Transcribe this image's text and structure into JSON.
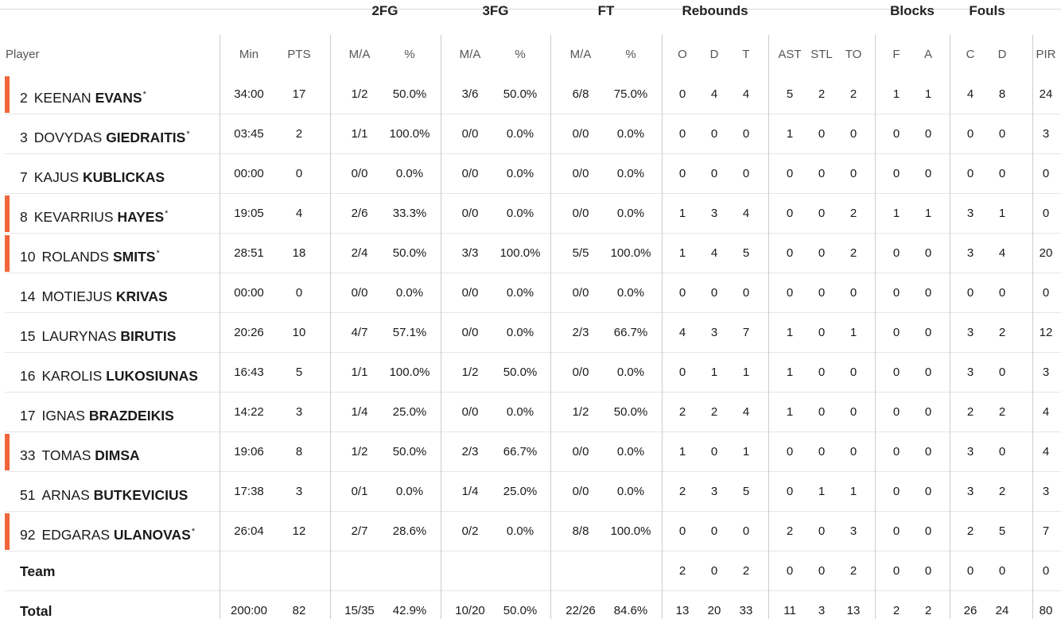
{
  "header": {
    "player_label": "Player",
    "groups": [
      {
        "key": "2fg",
        "label": "2FG"
      },
      {
        "key": "3fg",
        "label": "3FG"
      },
      {
        "key": "ft",
        "label": "FT"
      },
      {
        "key": "reb",
        "label": "Rebounds"
      },
      {
        "key": "blk",
        "label": "Blocks"
      },
      {
        "key": "fouls",
        "label": "Fouls"
      }
    ],
    "columns": [
      "Min",
      "PTS",
      "M/A",
      "%",
      "M/A",
      "%",
      "M/A",
      "%",
      "O",
      "D",
      "T",
      "AST",
      "STL",
      "TO",
      "F",
      "A",
      "C",
      "D",
      "PIR"
    ]
  },
  "players": [
    {
      "number": "2",
      "first": "KEENAN",
      "last": "EVANS",
      "star": "*",
      "starter": true,
      "stats": [
        "34:00",
        "17",
        "1/2",
        "50.0%",
        "3/6",
        "50.0%",
        "6/8",
        "75.0%",
        "0",
        "4",
        "4",
        "5",
        "2",
        "2",
        "1",
        "1",
        "4",
        "8",
        "24"
      ]
    },
    {
      "number": "3",
      "first": "DOVYDAS",
      "last": "GIEDRAITIS",
      "star": "*",
      "starter": false,
      "stats": [
        "03:45",
        "2",
        "1/1",
        "100.0%",
        "0/0",
        "0.0%",
        "0/0",
        "0.0%",
        "0",
        "0",
        "0",
        "1",
        "0",
        "0",
        "0",
        "0",
        "0",
        "0",
        "3"
      ]
    },
    {
      "number": "7",
      "first": "KAJUS",
      "last": "KUBLICKAS",
      "star": "",
      "starter": false,
      "stats": [
        "00:00",
        "0",
        "0/0",
        "0.0%",
        "0/0",
        "0.0%",
        "0/0",
        "0.0%",
        "0",
        "0",
        "0",
        "0",
        "0",
        "0",
        "0",
        "0",
        "0",
        "0",
        "0"
      ]
    },
    {
      "number": "8",
      "first": "KEVARRIUS",
      "last": "HAYES",
      "star": "*",
      "starter": true,
      "stats": [
        "19:05",
        "4",
        "2/6",
        "33.3%",
        "0/0",
        "0.0%",
        "0/0",
        "0.0%",
        "1",
        "3",
        "4",
        "0",
        "0",
        "2",
        "1",
        "1",
        "3",
        "1",
        "0"
      ]
    },
    {
      "number": "10",
      "first": "ROLANDS",
      "last": "SMITS",
      "star": "*",
      "starter": true,
      "stats": [
        "28:51",
        "18",
        "2/4",
        "50.0%",
        "3/3",
        "100.0%",
        "5/5",
        "100.0%",
        "1",
        "4",
        "5",
        "0",
        "0",
        "2",
        "0",
        "0",
        "3",
        "4",
        "20"
      ]
    },
    {
      "number": "14",
      "first": "MOTIEJUS",
      "last": "KRIVAS",
      "star": "",
      "starter": false,
      "stats": [
        "00:00",
        "0",
        "0/0",
        "0.0%",
        "0/0",
        "0.0%",
        "0/0",
        "0.0%",
        "0",
        "0",
        "0",
        "0",
        "0",
        "0",
        "0",
        "0",
        "0",
        "0",
        "0"
      ]
    },
    {
      "number": "15",
      "first": "LAURYNAS",
      "last": "BIRUTIS",
      "star": "",
      "starter": false,
      "stats": [
        "20:26",
        "10",
        "4/7",
        "57.1%",
        "0/0",
        "0.0%",
        "2/3",
        "66.7%",
        "4",
        "3",
        "7",
        "1",
        "0",
        "1",
        "0",
        "0",
        "3",
        "2",
        "12"
      ]
    },
    {
      "number": "16",
      "first": "KAROLIS",
      "last": "LUKOSIUNAS",
      "star": "",
      "starter": false,
      "stats": [
        "16:43",
        "5",
        "1/1",
        "100.0%",
        "1/2",
        "50.0%",
        "0/0",
        "0.0%",
        "0",
        "1",
        "1",
        "1",
        "0",
        "0",
        "0",
        "0",
        "3",
        "0",
        "3"
      ]
    },
    {
      "number": "17",
      "first": "IGNAS",
      "last": "BRAZDEIKIS",
      "star": "",
      "starter": false,
      "stats": [
        "14:22",
        "3",
        "1/4",
        "25.0%",
        "0/0",
        "0.0%",
        "1/2",
        "50.0%",
        "2",
        "2",
        "4",
        "1",
        "0",
        "0",
        "0",
        "0",
        "2",
        "2",
        "4"
      ]
    },
    {
      "number": "33",
      "first": "TOMAS",
      "last": "DIMSA",
      "star": "",
      "starter": true,
      "stats": [
        "19:06",
        "8",
        "1/2",
        "50.0%",
        "2/3",
        "66.7%",
        "0/0",
        "0.0%",
        "1",
        "0",
        "1",
        "0",
        "0",
        "0",
        "0",
        "0",
        "3",
        "0",
        "4"
      ]
    },
    {
      "number": "51",
      "first": "ARNAS",
      "last": "BUTKEVICIUS",
      "star": "",
      "starter": false,
      "stats": [
        "17:38",
        "3",
        "0/1",
        "0.0%",
        "1/4",
        "25.0%",
        "0/0",
        "0.0%",
        "2",
        "3",
        "5",
        "0",
        "1",
        "1",
        "0",
        "0",
        "3",
        "2",
        "3"
      ]
    },
    {
      "number": "92",
      "first": "EDGARAS",
      "last": "ULANOVAS",
      "star": "*",
      "starter": true,
      "stats": [
        "26:04",
        "12",
        "2/7",
        "28.6%",
        "0/2",
        "0.0%",
        "8/8",
        "100.0%",
        "0",
        "0",
        "0",
        "2",
        "0",
        "3",
        "0",
        "0",
        "2",
        "5",
        "7"
      ]
    }
  ],
  "team_row": {
    "label": "Team",
    "stats": [
      "",
      "",
      "",
      "",
      "",
      "",
      "",
      "",
      "2",
      "0",
      "2",
      "0",
      "0",
      "2",
      "0",
      "0",
      "0",
      "0",
      "0"
    ]
  },
  "total_row": {
    "label": "Total",
    "stats": [
      "200:00",
      "82",
      "15/35",
      "42.9%",
      "10/20",
      "50.0%",
      "22/26",
      "84.6%",
      "13",
      "20",
      "33",
      "11",
      "3",
      "13",
      "2",
      "2",
      "26",
      "24",
      "80"
    ]
  },
  "colors": {
    "starter_accent": "#f0653a",
    "divider": "#cccccc"
  }
}
